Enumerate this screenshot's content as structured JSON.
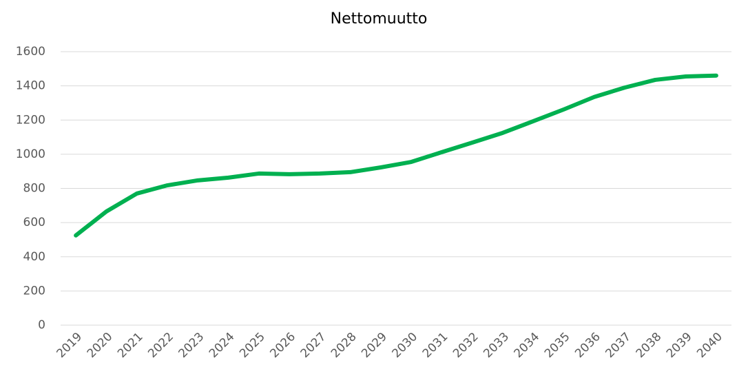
{
  "chart_data": {
    "type": "line",
    "title": "Nettomuutto",
    "categories": [
      "2019",
      "2020",
      "2021",
      "2022",
      "2023",
      "2024",
      "2025",
      "2026",
      "2027",
      "2028",
      "2029",
      "2030",
      "2031",
      "2032",
      "2033",
      "2034",
      "2035",
      "2036",
      "2037",
      "2038",
      "2039",
      "2040"
    ],
    "series": [
      {
        "name": "Nettomuutto",
        "color": "#00b050",
        "values": [
          525,
          665,
          770,
          818,
          847,
          863,
          887,
          883,
          887,
          895,
          923,
          955,
          1012,
          1068,
          1125,
          1193,
          1262,
          1335,
          1390,
          1435,
          1455,
          1460
        ]
      }
    ],
    "ylim": [
      0,
      1600
    ],
    "yticks": [
      0,
      200,
      400,
      600,
      800,
      1000,
      1200,
      1400,
      1600
    ],
    "grid": true
  }
}
